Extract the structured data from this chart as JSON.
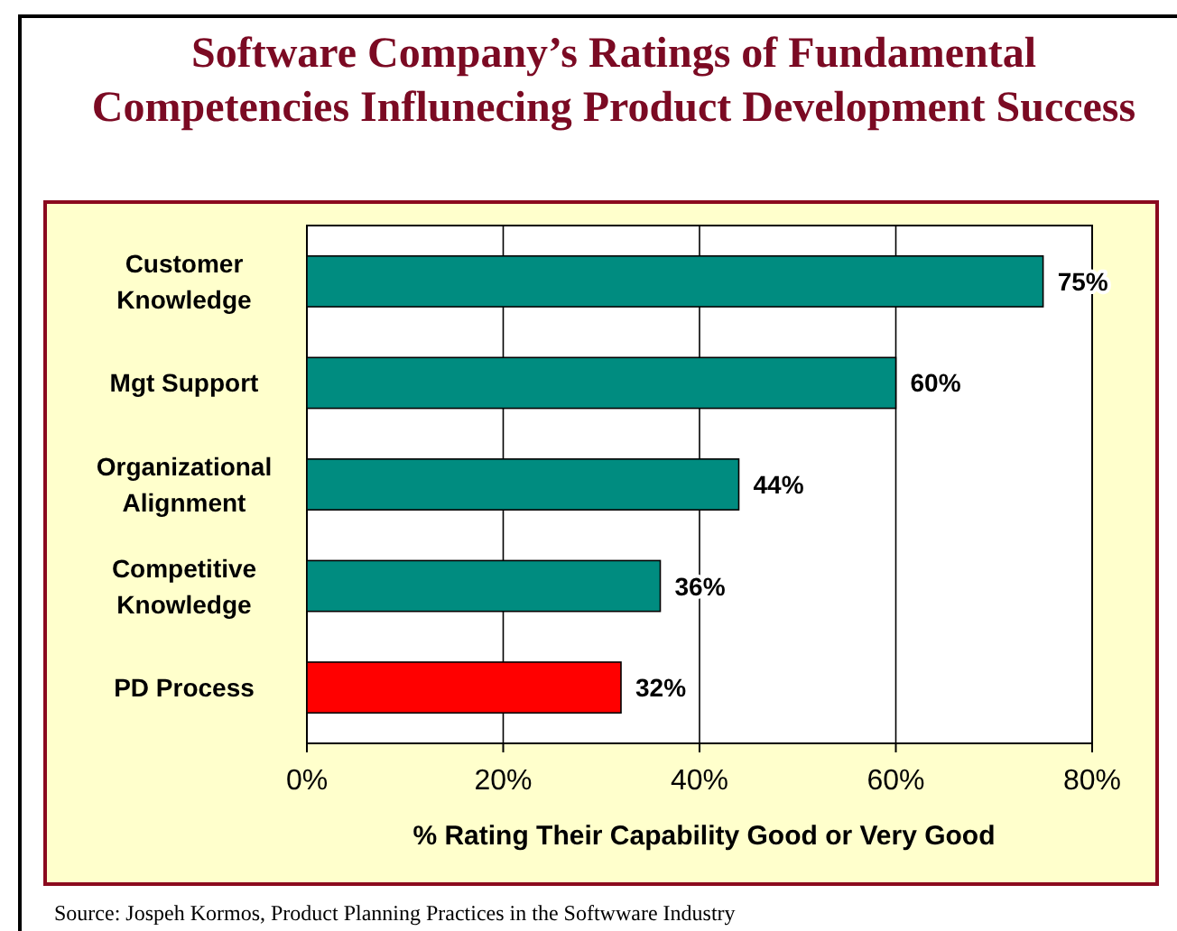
{
  "chart_data": {
    "type": "bar",
    "orientation": "horizontal",
    "title": "Software Company’s Ratings of Fundamental Competencies Influnecing Product Development Success",
    "xlabel": "% Rating Their Capability Good or Very Good",
    "categories": [
      "Customer Knowledge",
      "Mgt Support",
      "Organizational Alignment",
      "Competitive Knowledge",
      "PD Process"
    ],
    "values": [
      75,
      60,
      44,
      36,
      32
    ],
    "colors": [
      "#008c80",
      "#008c80",
      "#008c80",
      "#008c80",
      "#ff0000"
    ],
    "value_labels": [
      "75%",
      "60%",
      "44%",
      "36%",
      "32%"
    ],
    "xlim": [
      0,
      80
    ],
    "xticks": [
      {
        "value": 0,
        "label": "0%"
      },
      {
        "value": 20,
        "label": "20%"
      },
      {
        "value": 40,
        "label": "40%"
      },
      {
        "value": 60,
        "label": "60%"
      },
      {
        "value": 80,
        "label": "80%"
      }
    ],
    "grid": "x",
    "annotations": [
      "Source: Jospeh Kormos, Product Planning Practices in the Softwware Industry"
    ]
  }
}
